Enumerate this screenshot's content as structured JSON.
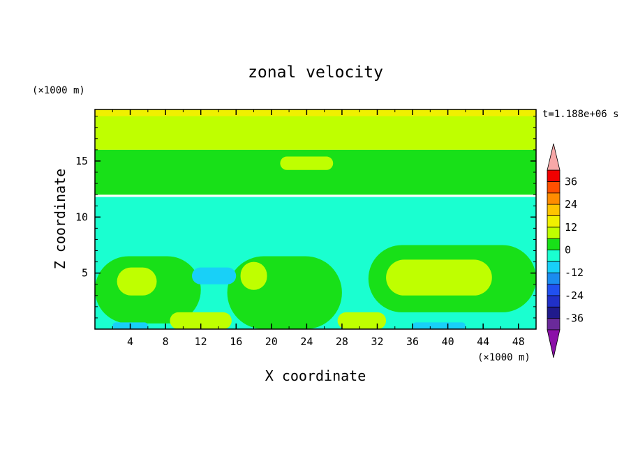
{
  "chart_data": {
    "type": "heatmap",
    "title": "zonal velocity",
    "xlabel": "X coordinate",
    "ylabel": "Z coordinate",
    "x_unit": "(×1000 m)",
    "y_unit": "(×1000 m)",
    "time_label": "t=1.188e+06 s",
    "xlim": [
      0,
      50
    ],
    "ylim": [
      0,
      19.6
    ],
    "x_ticks": [
      "4",
      "8",
      "12",
      "16",
      "20",
      "24",
      "28",
      "32",
      "36",
      "40",
      "44",
      "48"
    ],
    "x_tick_values": [
      4,
      8,
      12,
      16,
      20,
      24,
      28,
      32,
      36,
      40,
      44,
      48
    ],
    "y_ticks": [
      "5",
      "10",
      "15"
    ],
    "y_tick_values": [
      5,
      10,
      15
    ],
    "colorbar": {
      "levels": [
        -42,
        -36,
        -30,
        -24,
        -18,
        -12,
        -6,
        0,
        6,
        12,
        18,
        24,
        30,
        36,
        42
      ],
      "tick_labels": [
        "36",
        "24",
        "12",
        "0",
        "-12",
        "-24",
        "-36"
      ],
      "tick_values": [
        36,
        24,
        12,
        0,
        -12,
        -24,
        -36
      ],
      "colors": [
        "#6a2a9a",
        "#201a8c",
        "#2030c8",
        "#2050f0",
        "#1a8cf0",
        "#18d0f8",
        "#1affd0",
        "#18e018",
        "#bfff00",
        "#f0f000",
        "#ffc400",
        "#ff8c00",
        "#ff5000",
        "#f00000"
      ],
      "extend_high": "#f7a8a8",
      "extend_low": "#8b10a8"
    },
    "regions": [
      {
        "value": 7,
        "desc": "top layer band",
        "x": [
          0,
          50
        ],
        "z": [
          16,
          19.6
        ]
      },
      {
        "value": 13,
        "desc": "cap strip",
        "x": [
          0,
          50
        ],
        "z": [
          19,
          19.6
        ]
      },
      {
        "value": 4,
        "desc": "mid-upper layer",
        "x": [
          0,
          50
        ],
        "z": [
          12,
          16
        ]
      },
      {
        "value": 7,
        "desc": "blob",
        "x": [
          21,
          27
        ],
        "z": [
          14.2,
          15.4
        ]
      },
      {
        "value": -6,
        "desc": "lower troposphere",
        "x": [
          0,
          50
        ],
        "z": [
          0,
          11.8
        ]
      },
      {
        "value": 2,
        "desc": "lower jet",
        "x": [
          0,
          12
        ],
        "z": [
          0.5,
          6.5
        ]
      },
      {
        "value": 8,
        "desc": "lower jet core",
        "x": [
          2.5,
          7
        ],
        "z": [
          3,
          5.5
        ]
      },
      {
        "value": 2,
        "desc": "lower jet",
        "x": [
          15,
          28
        ],
        "z": [
          0,
          6.5
        ]
      },
      {
        "value": 8,
        "desc": "lower jet core",
        "x": [
          16.5,
          19.5
        ],
        "z": [
          3.5,
          6
        ]
      },
      {
        "value": 2,
        "desc": "lower jet",
        "x": [
          31,
          50
        ],
        "z": [
          1.5,
          7.5
        ]
      },
      {
        "value": 8,
        "desc": "lower jet core",
        "x": [
          33,
          45
        ],
        "z": [
          3,
          6.2
        ]
      },
      {
        "value": 8,
        "desc": "surface patch",
        "x": [
          8.5,
          15.5
        ],
        "z": [
          0,
          1.5
        ]
      },
      {
        "value": 8,
        "desc": "surface patch",
        "x": [
          27.5,
          33
        ],
        "z": [
          0,
          1.5
        ]
      },
      {
        "value": -10,
        "desc": "weak easterly",
        "x": [
          11,
          16
        ],
        "z": [
          4,
          5.5
        ]
      },
      {
        "value": -12,
        "desc": "surface easterly",
        "x": [
          36,
          42
        ],
        "z": [
          0,
          0.6
        ]
      },
      {
        "value": -12,
        "desc": "surface easterly",
        "x": [
          2,
          6
        ],
        "z": [
          0,
          0.6
        ]
      }
    ]
  }
}
